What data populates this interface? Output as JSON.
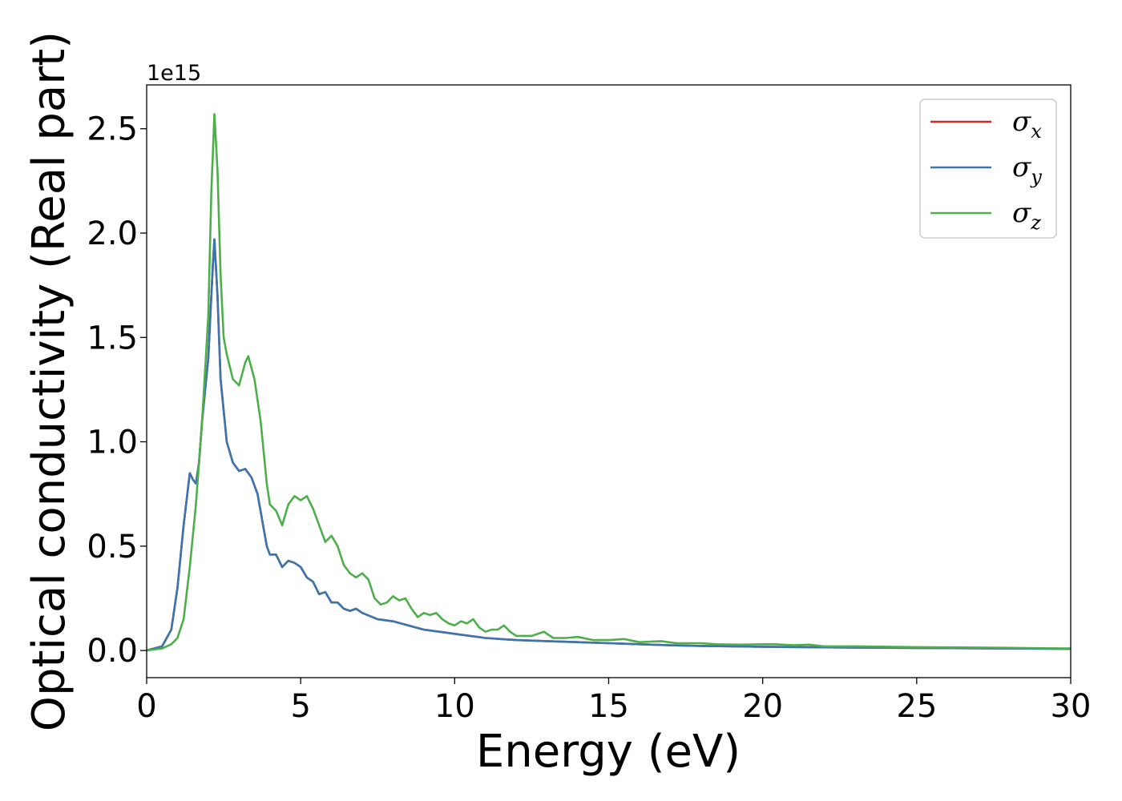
{
  "chart_data": {
    "type": "line",
    "xlabel": "Energy (eV)",
    "ylabel": "Optical conductivity (Real part)",
    "y_offset_text": "1e15",
    "xlim": [
      0,
      30
    ],
    "ylim": [
      -0.13,
      2.71
    ],
    "x_ticks": [
      0,
      5,
      10,
      15,
      20,
      25,
      30
    ],
    "x_tick_labels": [
      "0",
      "5",
      "10",
      "15",
      "20",
      "25",
      "30"
    ],
    "y_ticks": [
      0.0,
      0.5,
      1.0,
      1.5,
      2.0,
      2.5
    ],
    "y_tick_labels": [
      "0.0",
      "0.5",
      "1.0",
      "1.5",
      "2.0",
      "2.5"
    ],
    "grid": false,
    "legend_position": "top-right",
    "series": [
      {
        "name": "σx",
        "legend_symbol": "σ",
        "legend_sub": "x",
        "color": "#d62728",
        "x": [
          0,
          0.5,
          0.8,
          1.0,
          1.2,
          1.4,
          1.5,
          1.6,
          1.7,
          1.8,
          2.0,
          2.15,
          2.2,
          2.3,
          2.4,
          2.6,
          2.8,
          3.0,
          3.2,
          3.4,
          3.6,
          3.9,
          4.0,
          4.2,
          4.4,
          4.6,
          4.8,
          5.0,
          5.2,
          5.4,
          5.6,
          5.8,
          6.0,
          6.2,
          6.4,
          6.6,
          6.8,
          7.0,
          7.5,
          8.0,
          8.5,
          9.0,
          10.0,
          11.0,
          12.0,
          13.0,
          14.0,
          15.0,
          16.0,
          17.0,
          18.0,
          19.0,
          20.0,
          22.0,
          25.0,
          28.0,
          30.0
        ],
        "y": [
          0,
          0.02,
          0.1,
          0.3,
          0.6,
          0.85,
          0.82,
          0.8,
          0.9,
          1.1,
          1.4,
          1.85,
          1.97,
          1.7,
          1.3,
          1.0,
          0.9,
          0.86,
          0.87,
          0.83,
          0.75,
          0.5,
          0.46,
          0.46,
          0.4,
          0.43,
          0.42,
          0.4,
          0.35,
          0.33,
          0.27,
          0.28,
          0.23,
          0.23,
          0.2,
          0.19,
          0.2,
          0.18,
          0.15,
          0.14,
          0.12,
          0.1,
          0.08,
          0.06,
          0.05,
          0.045,
          0.04,
          0.035,
          0.03,
          0.025,
          0.022,
          0.02,
          0.018,
          0.015,
          0.012,
          0.01,
          0.008
        ]
      },
      {
        "name": "σy",
        "legend_symbol": "σ",
        "legend_sub": "y",
        "color": "#3a75b0",
        "x": [
          0,
          0.5,
          0.8,
          1.0,
          1.2,
          1.4,
          1.5,
          1.6,
          1.7,
          1.8,
          2.0,
          2.15,
          2.2,
          2.3,
          2.4,
          2.6,
          2.8,
          3.0,
          3.2,
          3.4,
          3.6,
          3.9,
          4.0,
          4.2,
          4.4,
          4.6,
          4.8,
          5.0,
          5.2,
          5.4,
          5.6,
          5.8,
          6.0,
          6.2,
          6.4,
          6.6,
          6.8,
          7.0,
          7.5,
          8.0,
          8.5,
          9.0,
          10.0,
          11.0,
          12.0,
          13.0,
          14.0,
          15.0,
          16.0,
          17.0,
          18.0,
          19.0,
          20.0,
          22.0,
          25.0,
          28.0,
          30.0
        ],
        "y": [
          0,
          0.02,
          0.1,
          0.3,
          0.6,
          0.85,
          0.82,
          0.8,
          0.9,
          1.1,
          1.4,
          1.85,
          1.97,
          1.7,
          1.3,
          1.0,
          0.9,
          0.86,
          0.87,
          0.83,
          0.75,
          0.5,
          0.46,
          0.46,
          0.4,
          0.43,
          0.42,
          0.4,
          0.35,
          0.33,
          0.27,
          0.28,
          0.23,
          0.23,
          0.2,
          0.19,
          0.2,
          0.18,
          0.15,
          0.14,
          0.12,
          0.1,
          0.08,
          0.06,
          0.05,
          0.045,
          0.04,
          0.035,
          0.03,
          0.025,
          0.022,
          0.02,
          0.018,
          0.015,
          0.012,
          0.01,
          0.008
        ]
      },
      {
        "name": "σz",
        "legend_symbol": "σ",
        "legend_sub": "z",
        "color": "#4daf4a",
        "x": [
          0,
          0.5,
          0.8,
          1.0,
          1.2,
          1.4,
          1.6,
          1.8,
          2.0,
          2.1,
          2.2,
          2.3,
          2.4,
          2.5,
          2.6,
          2.8,
          3.0,
          3.2,
          3.3,
          3.5,
          3.7,
          3.9,
          4.0,
          4.2,
          4.4,
          4.6,
          4.8,
          5.0,
          5.2,
          5.4,
          5.6,
          5.8,
          6.0,
          6.2,
          6.4,
          6.6,
          6.8,
          7.0,
          7.2,
          7.4,
          7.6,
          7.8,
          8.0,
          8.2,
          8.4,
          8.6,
          8.8,
          9.0,
          9.2,
          9.4,
          9.6,
          9.8,
          10.0,
          10.2,
          10.4,
          10.6,
          10.8,
          11.0,
          11.2,
          11.4,
          11.6,
          11.8,
          12.0,
          12.5,
          12.9,
          13.2,
          13.6,
          14.0,
          14.5,
          15.0,
          15.5,
          16.0,
          16.7,
          17.2,
          18.0,
          18.5,
          19.2,
          20.0,
          20.4,
          21.0,
          21.5,
          22.0,
          23.0,
          24.0,
          25.0,
          26.0,
          27.0,
          28.0,
          29.0,
          30.0
        ],
        "y": [
          0,
          0.01,
          0.03,
          0.06,
          0.15,
          0.4,
          0.7,
          1.1,
          1.6,
          2.2,
          2.57,
          2.3,
          1.8,
          1.5,
          1.42,
          1.3,
          1.27,
          1.38,
          1.41,
          1.3,
          1.1,
          0.8,
          0.7,
          0.67,
          0.6,
          0.7,
          0.74,
          0.72,
          0.74,
          0.68,
          0.6,
          0.52,
          0.55,
          0.5,
          0.41,
          0.37,
          0.35,
          0.37,
          0.34,
          0.25,
          0.22,
          0.23,
          0.26,
          0.24,
          0.25,
          0.2,
          0.16,
          0.18,
          0.17,
          0.18,
          0.15,
          0.13,
          0.12,
          0.14,
          0.13,
          0.15,
          0.11,
          0.09,
          0.1,
          0.1,
          0.12,
          0.09,
          0.07,
          0.07,
          0.09,
          0.06,
          0.06,
          0.065,
          0.05,
          0.05,
          0.055,
          0.04,
          0.045,
          0.035,
          0.035,
          0.03,
          0.028,
          0.03,
          0.03,
          0.025,
          0.028,
          0.02,
          0.02,
          0.018,
          0.016,
          0.015,
          0.014,
          0.013,
          0.011,
          0.01
        ]
      }
    ]
  }
}
